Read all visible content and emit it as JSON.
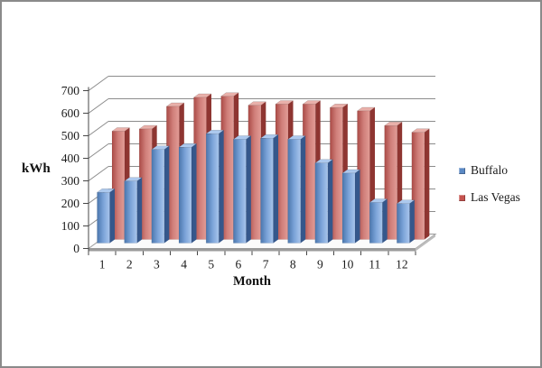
{
  "window": {
    "background": "#ffffff",
    "frame_border_color": "#8a8a8a"
  },
  "chart_data": {
    "type": "bar",
    "subtype": "3d-clustered-column",
    "title": "",
    "xlabel": "Month",
    "ylabel": "kWh",
    "categories": [
      "1",
      "2",
      "3",
      "4",
      "5",
      "6",
      "7",
      "8",
      "9",
      "10",
      "11",
      "12"
    ],
    "series": [
      {
        "name": "Buffalo",
        "color": "#5b89c4",
        "gradient": [
          "#4a76ad",
          "#7ba3d8",
          "#a8c5ec"
        ],
        "side_color": "#35578b",
        "top_color": "#adc9ee",
        "values": [
          225,
          275,
          415,
          425,
          485,
          460,
          465,
          460,
          355,
          310,
          180,
          175
        ]
      },
      {
        "name": "Las Vegas",
        "color": "#c5534f",
        "gradient": [
          "#aa4a46",
          "#d07f7a",
          "#e29c96"
        ],
        "side_color": "#8e3531",
        "top_color": "#e9b0aa",
        "values": [
          480,
          490,
          590,
          630,
          635,
          595,
          600,
          600,
          585,
          570,
          505,
          475
        ]
      }
    ],
    "ylim": [
      0,
      700
    ],
    "ytick_step": 100,
    "yticks": [
      0,
      100,
      200,
      300,
      400,
      500,
      600,
      700
    ],
    "grid": true,
    "gridline_color": "#8c8c8c",
    "axis_color": "#474747",
    "floor_front_color": "#9b9b9b",
    "legend_position": "right"
  }
}
